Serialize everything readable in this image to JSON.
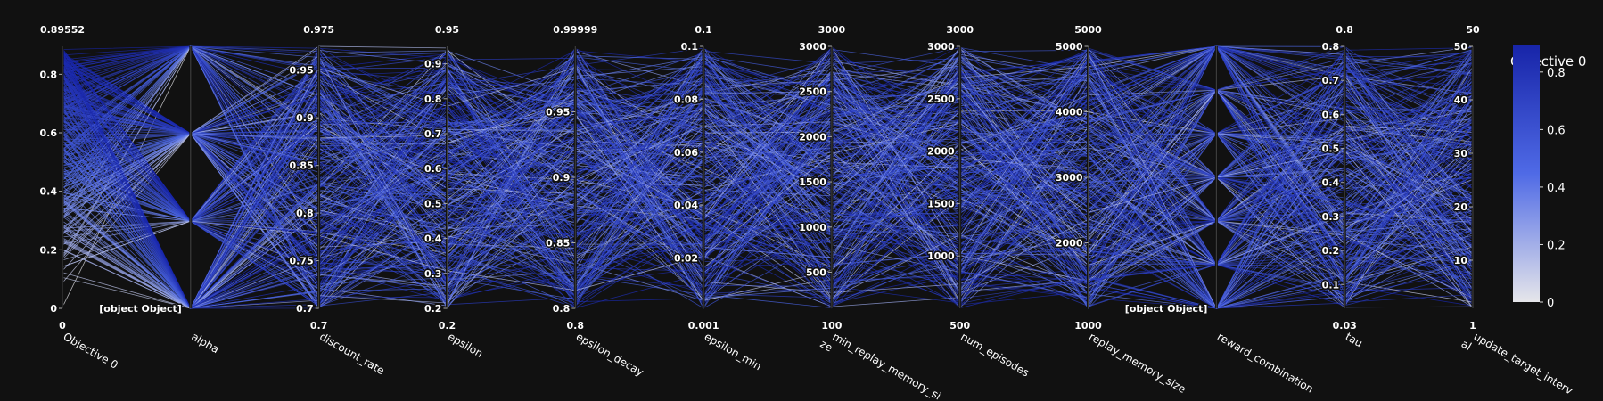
{
  "chart_data": {
    "type": "parallel_coordinates",
    "colorbar": {
      "title": "Objective 0",
      "range": [
        0,
        0.89552
      ],
      "ticks": [
        0,
        0.2,
        0.4,
        0.6,
        0.8
      ],
      "tick_labels": [
        "0",
        "0.2",
        "0.4",
        "0.6",
        "0.8"
      ],
      "colors": [
        "#e6e6ea",
        "#1724a8"
      ]
    },
    "dimensions": [
      {
        "name": "Objective 0",
        "range": [
          0,
          0.89552
        ],
        "min_label": "0",
        "max_label": "0.89552",
        "ticks": [
          0,
          0.2,
          0.4,
          0.6,
          0.8
        ],
        "tick_labels": [
          "0",
          "0.2",
          "0.4",
          "0.6",
          "0.8"
        ],
        "label_lines": [
          "Objective 0"
        ]
      },
      {
        "name": "alpha",
        "range": [
          0,
          1
        ],
        "min_label": "",
        "max_label": "",
        "ticks": [
          0
        ],
        "tick_labels": [
          "[object Object]"
        ],
        "label_lines": [
          "alpha"
        ],
        "levels": [
          0,
          0.333,
          0.667,
          1
        ]
      },
      {
        "name": "discount_rate",
        "range": [
          0.7,
          0.975
        ],
        "min_label": "0.7",
        "max_label": "0.975",
        "ticks": [
          0.7,
          0.75,
          0.8,
          0.85,
          0.9,
          0.95
        ],
        "tick_labels": [
          "0.7",
          "0.75",
          "0.8",
          "0.85",
          "0.9",
          "0.95"
        ],
        "label_lines": [
          "discount_rate"
        ]
      },
      {
        "name": "epsilon",
        "range": [
          0.2,
          0.95
        ],
        "min_label": "0.2",
        "max_label": "0.95",
        "ticks": [
          0.2,
          0.3,
          0.4,
          0.5,
          0.6,
          0.7,
          0.8,
          0.9
        ],
        "tick_labels": [
          "0.2",
          "0.3",
          "0.4",
          "0.5",
          "0.6",
          "0.7",
          "0.8",
          "0.9"
        ],
        "label_lines": [
          "epsilon"
        ]
      },
      {
        "name": "epsilon_decay",
        "range": [
          0.8,
          0.99999
        ],
        "min_label": "0.8",
        "max_label": "0.99999",
        "ticks": [
          0.8,
          0.85,
          0.9,
          0.95
        ],
        "tick_labels": [
          "0.8",
          "0.85",
          "0.9",
          "0.95"
        ],
        "label_lines": [
          "epsilon_decay"
        ]
      },
      {
        "name": "epsilon_min",
        "range": [
          0.001,
          0.1
        ],
        "min_label": "0.001",
        "max_label": "0.1",
        "ticks": [
          0.02,
          0.04,
          0.06,
          0.08,
          0.1
        ],
        "tick_labels": [
          "0.02",
          "0.04",
          "0.06",
          "0.08",
          "0.1"
        ],
        "label_lines": [
          "epsilon_min"
        ]
      },
      {
        "name": "min_replay_memory_size",
        "range": [
          100,
          3000
        ],
        "min_label": "100",
        "max_label": "3000",
        "ticks": [
          500,
          1000,
          1500,
          2000,
          2500,
          3000
        ],
        "tick_labels": [
          "500",
          "1000",
          "1500",
          "2000",
          "2500",
          "3000"
        ],
        "label_lines": [
          "min_replay_memory_si",
          "ze"
        ]
      },
      {
        "name": "num_episodes",
        "range": [
          500,
          3000
        ],
        "min_label": "500",
        "max_label": "3000",
        "ticks": [
          1000,
          1500,
          2000,
          2500,
          3000
        ],
        "tick_labels": [
          "1000",
          "1500",
          "2000",
          "2500",
          "3000"
        ],
        "label_lines": [
          "num_episodes"
        ]
      },
      {
        "name": "replay_memory_size",
        "range": [
          1000,
          5000
        ],
        "min_label": "1000",
        "max_label": "5000",
        "ticks": [
          2000,
          3000,
          4000,
          5000
        ],
        "tick_labels": [
          "2000",
          "3000",
          "4000",
          "5000"
        ],
        "label_lines": [
          "replay_memory_size"
        ]
      },
      {
        "name": "reward_combination",
        "range": [
          0,
          1
        ],
        "min_label": "",
        "max_label": "",
        "ticks": [
          0
        ],
        "tick_labels": [
          "[object Object]"
        ],
        "label_lines": [
          "reward_combination"
        ],
        "levels": [
          0,
          0.167,
          0.333,
          0.5,
          0.667,
          0.833,
          1
        ]
      },
      {
        "name": "tau",
        "range": [
          0.03,
          0.8
        ],
        "min_label": "0.03",
        "max_label": "0.8",
        "ticks": [
          0.1,
          0.2,
          0.3,
          0.4,
          0.5,
          0.6,
          0.7,
          0.8
        ],
        "tick_labels": [
          "0.1",
          "0.2",
          "0.3",
          "0.4",
          "0.5",
          "0.6",
          "0.7",
          "0.8"
        ],
        "label_lines": [
          "tau"
        ]
      },
      {
        "name": "update_target_interval",
        "range": [
          1,
          50
        ],
        "min_label": "1",
        "max_label": "50",
        "ticks": [
          10,
          20,
          30,
          40,
          50
        ],
        "tick_labels": [
          "10",
          "20",
          "30",
          "40",
          "50"
        ],
        "label_lines": [
          "update_target_interv",
          "al"
        ]
      }
    ],
    "trial_count": 320
  }
}
